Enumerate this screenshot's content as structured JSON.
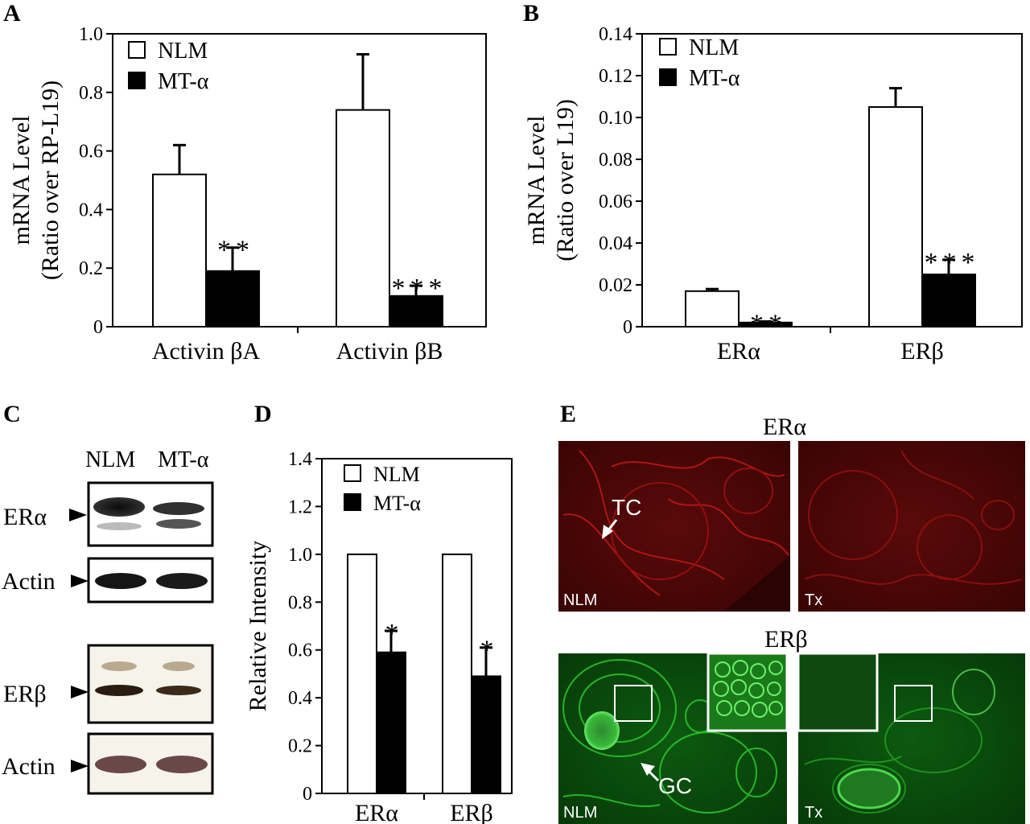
{
  "panels": {
    "A": "A",
    "B": "B",
    "C": "C",
    "D": "D",
    "E": "E"
  },
  "legend": {
    "nlm": "NLM",
    "mt": "MT-α"
  },
  "chart_data": [
    {
      "panel": "A",
      "type": "bar",
      "categories": [
        "Activin βA",
        "Activin βB"
      ],
      "series": [
        {
          "name": "NLM",
          "color": "#ffffff",
          "values": [
            0.52,
            0.74
          ],
          "errors": [
            0.1,
            0.19
          ]
        },
        {
          "name": "MT-α",
          "color": "#000000",
          "values": [
            0.19,
            0.105
          ],
          "errors": [
            0.08,
            0.035
          ]
        }
      ],
      "significance": [
        "**",
        "***"
      ],
      "ylabel_line1": "mRNA Level",
      "ylabel_line2": "(Ratio over RP-L19)",
      "ylim": [
        0,
        1.0
      ],
      "yticks": [
        "0",
        "0.2",
        "0.4",
        "0.6",
        "0.8",
        "1.0"
      ],
      "yticks_values": [
        0,
        0.2,
        0.4,
        0.6,
        0.8,
        1.0
      ]
    },
    {
      "panel": "B",
      "type": "bar",
      "categories": [
        "ERα",
        "ERβ"
      ],
      "series": [
        {
          "name": "NLM",
          "color": "#ffffff",
          "values": [
            0.017,
            0.105
          ],
          "errors": [
            0.001,
            0.009
          ]
        },
        {
          "name": "MT-α",
          "color": "#000000",
          "values": [
            0.002,
            0.025
          ],
          "errors": [
            0.0005,
            0.007
          ]
        }
      ],
      "significance": [
        "**",
        "***"
      ],
      "ylabel_line1": "mRNA Level",
      "ylabel_line2": "(Ratio over L19)",
      "ylim": [
        0,
        0.14
      ],
      "yticks": [
        "0",
        "0.02",
        "0.04",
        "0.06",
        "0.08",
        "0.10",
        "0.12",
        "0.14"
      ],
      "yticks_values": [
        0,
        0.02,
        0.04,
        0.06,
        0.08,
        0.1,
        0.12,
        0.14
      ]
    },
    {
      "panel": "D",
      "type": "bar",
      "categories": [
        "ERα",
        "ERβ"
      ],
      "series": [
        {
          "name": "NLM",
          "color": "#ffffff",
          "values": [
            1.0,
            1.0
          ],
          "errors": [
            0,
            0
          ]
        },
        {
          "name": "MT-α",
          "color": "#000000",
          "values": [
            0.59,
            0.49
          ],
          "errors": [
            0.09,
            0.12
          ]
        }
      ],
      "significance": [
        "*",
        "*"
      ],
      "ylabel_line1": "Relative Intensity",
      "ylabel_line2": "",
      "ylim": [
        0,
        1.4
      ],
      "yticks": [
        "0",
        "0.2",
        "0.4",
        "0.6",
        "0.8",
        "1.0",
        "1.2",
        "1.4"
      ],
      "yticks_values": [
        0,
        0.2,
        0.4,
        0.6,
        0.8,
        1.0,
        1.2,
        1.4
      ]
    }
  ],
  "western": {
    "col_nlm": "NLM",
    "col_mt": "MT-α",
    "rows": [
      "ERα",
      "Actin",
      "ERβ",
      "Actin"
    ]
  },
  "micro": {
    "title_era": "ERα",
    "title_erb": "ERβ",
    "label_nlm": "NLM",
    "label_tx": "Tx",
    "label_tc": "TC",
    "label_gc": "GC",
    "era_color": "#b01010",
    "erb_color": "#1fae1f"
  }
}
